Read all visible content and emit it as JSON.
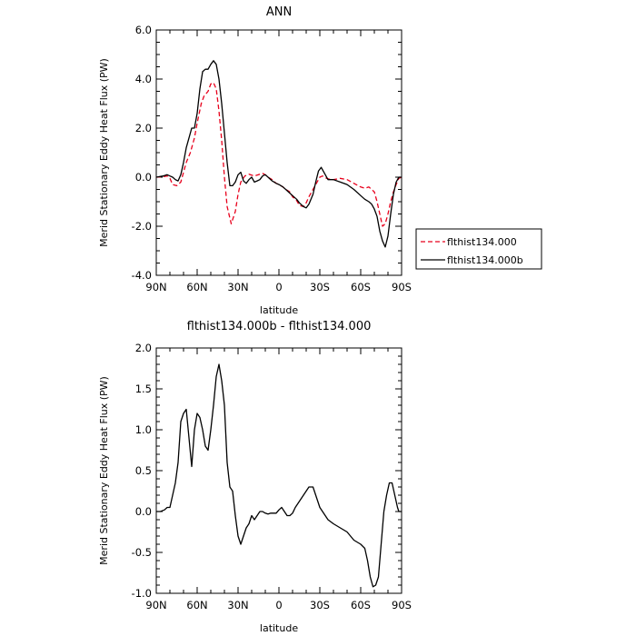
{
  "chart_data": [
    {
      "type": "line",
      "title": "ANN",
      "xlabel": "latitude",
      "ylabel": "Merid Stationary Eddy Heat Flux (PW)",
      "xlim": [
        90,
        -90
      ],
      "ylim": [
        -4,
        6
      ],
      "x_ticks": [
        90,
        60,
        30,
        0,
        -30,
        -60,
        -90
      ],
      "x_tick_labels": [
        "90N",
        "60N",
        "30N",
        "0",
        "30S",
        "60S",
        "90S"
      ],
      "y_ticks": [
        -4,
        -2,
        0,
        2,
        4,
        6
      ],
      "y_tick_labels": [
        "-4.0",
        "-2.0",
        "0.0",
        "2.0",
        "4.0",
        "6.0"
      ],
      "grid": false,
      "legend_position": "right",
      "series": [
        {
          "name": "flthist134.000",
          "color": "#e8001c",
          "dash": "dashed",
          "x": [
            90,
            85,
            82,
            80,
            78,
            75,
            72,
            70,
            68,
            65,
            62,
            60,
            57,
            55,
            52,
            50,
            48,
            46,
            44,
            42,
            40,
            38,
            35,
            32,
            30,
            28,
            25,
            22,
            18,
            15,
            12,
            10,
            8,
            5,
            2,
            0,
            -3,
            -5,
            -8,
            -10,
            -13,
            -15,
            -18,
            -20,
            -22,
            -25,
            -28,
            -30,
            -32,
            -35,
            -38,
            -40,
            -45,
            -50,
            -55,
            -60,
            -63,
            -66,
            -70,
            -72,
            -74,
            -76,
            -78,
            -80,
            -82,
            -84,
            -86,
            -88,
            -90
          ],
          "y": [
            0.0,
            0.02,
            0.05,
            -0.05,
            -0.3,
            -0.35,
            -0.2,
            0.2,
            0.6,
            1.0,
            1.6,
            2.2,
            3.0,
            3.3,
            3.5,
            3.8,
            3.85,
            3.6,
            2.7,
            1.5,
            0.0,
            -1.2,
            -1.9,
            -1.4,
            -0.7,
            -0.2,
            0.05,
            0.12,
            0.05,
            0.1,
            0.15,
            0.1,
            0.0,
            -0.1,
            -0.25,
            -0.3,
            -0.4,
            -0.5,
            -0.6,
            -0.8,
            -0.95,
            -1.15,
            -1.2,
            -1.05,
            -0.8,
            -0.5,
            -0.2,
            0.0,
            0.05,
            -0.05,
            -0.1,
            -0.1,
            -0.05,
            -0.1,
            -0.25,
            -0.4,
            -0.45,
            -0.4,
            -0.6,
            -1.0,
            -1.5,
            -2.0,
            -1.9,
            -1.5,
            -1.0,
            -0.6,
            -0.3,
            -0.05,
            0.0
          ]
        },
        {
          "name": "flthist134.000b",
          "color": "#000000",
          "dash": "solid",
          "x": [
            90,
            85,
            82,
            80,
            78,
            76,
            74,
            72,
            70,
            68,
            66,
            64,
            62,
            60,
            58,
            56,
            54,
            52,
            50,
            48,
            46,
            44,
            42,
            40,
            38,
            36,
            34,
            32,
            30,
            28,
            26,
            24,
            22,
            20,
            18,
            16,
            14,
            12,
            10,
            8,
            5,
            2,
            0,
            -3,
            -5,
            -8,
            -10,
            -13,
            -15,
            -18,
            -20,
            -22,
            -25,
            -27,
            -29,
            -31,
            -33,
            -36,
            -40,
            -45,
            -50,
            -55,
            -60,
            -63,
            -66,
            -68,
            -70,
            -72,
            -74,
            -76,
            -78,
            -80,
            -82,
            -84,
            -86,
            -88,
            -90
          ],
          "y": [
            0.0,
            0.05,
            0.1,
            0.05,
            0.0,
            -0.1,
            -0.15,
            0.1,
            0.6,
            1.2,
            1.6,
            2.0,
            2.0,
            2.6,
            3.6,
            4.3,
            4.4,
            4.4,
            4.6,
            4.75,
            4.6,
            4.0,
            3.0,
            1.8,
            0.6,
            -0.35,
            -0.35,
            -0.2,
            0.1,
            0.2,
            -0.15,
            -0.25,
            -0.1,
            0.0,
            -0.2,
            -0.15,
            -0.1,
            0.05,
            0.1,
            0.0,
            -0.15,
            -0.25,
            -0.3,
            -0.4,
            -0.5,
            -0.65,
            -0.75,
            -0.9,
            -1.05,
            -1.2,
            -1.25,
            -1.1,
            -0.7,
            -0.2,
            0.25,
            0.4,
            0.2,
            -0.1,
            -0.1,
            -0.2,
            -0.3,
            -0.5,
            -0.75,
            -0.9,
            -1.0,
            -1.1,
            -1.3,
            -1.6,
            -2.2,
            -2.6,
            -2.85,
            -2.4,
            -1.5,
            -0.7,
            -0.2,
            0.0,
            0.0
          ]
        }
      ]
    },
    {
      "type": "line",
      "title": "flthist134.000b - flthist134.000",
      "xlabel": "latitude",
      "ylabel": "Merid Stationary Eddy Heat Flux (PW)",
      "xlim": [
        90,
        -90
      ],
      "ylim": [
        -1.0,
        2.0
      ],
      "x_ticks": [
        90,
        60,
        30,
        0,
        -30,
        -60,
        -90
      ],
      "x_tick_labels": [
        "90N",
        "60N",
        "30N",
        "0",
        "30S",
        "60S",
        "90S"
      ],
      "y_ticks": [
        -1.0,
        -0.5,
        0.0,
        0.5,
        1.0,
        1.5,
        2.0
      ],
      "y_tick_labels": [
        "-1.0",
        "-0.5",
        "0.0",
        "0.5",
        "1.0",
        "1.5",
        "2.0"
      ],
      "grid": false,
      "series": [
        {
          "color": "#000000",
          "dash": "solid",
          "x": [
            90,
            87,
            84,
            82,
            80,
            78,
            76,
            74,
            72,
            70,
            68,
            66,
            64,
            62,
            60,
            58,
            56,
            54,
            52,
            50,
            48,
            46,
            44,
            42,
            40,
            38,
            36,
            34,
            32,
            30,
            28,
            26,
            24,
            22,
            20,
            18,
            16,
            14,
            12,
            10,
            8,
            6,
            4,
            2,
            0,
            -2,
            -4,
            -6,
            -8,
            -10,
            -12,
            -14,
            -16,
            -18,
            -20,
            -22,
            -25,
            -28,
            -30,
            -32,
            -34,
            -36,
            -40,
            -45,
            -50,
            -55,
            -60,
            -63,
            -65,
            -67,
            -69,
            -71,
            -73,
            -75,
            -77,
            -79,
            -81,
            -83,
            -85,
            -87,
            -88,
            -90
          ],
          "y": [
            0.0,
            0.0,
            0.02,
            0.05,
            0.05,
            0.2,
            0.35,
            0.6,
            1.1,
            1.2,
            1.25,
            0.9,
            0.55,
            1.0,
            1.2,
            1.15,
            1.0,
            0.8,
            0.75,
            1.0,
            1.3,
            1.65,
            1.8,
            1.6,
            1.3,
            0.6,
            0.3,
            0.25,
            -0.05,
            -0.3,
            -0.4,
            -0.3,
            -0.2,
            -0.15,
            -0.05,
            -0.1,
            -0.05,
            0.0,
            0.0,
            -0.02,
            -0.03,
            -0.02,
            -0.02,
            -0.02,
            0.02,
            0.05,
            0.0,
            -0.05,
            -0.05,
            -0.02,
            0.05,
            0.1,
            0.15,
            0.2,
            0.25,
            0.3,
            0.3,
            0.15,
            0.05,
            0.0,
            -0.05,
            -0.1,
            -0.15,
            -0.2,
            -0.25,
            -0.35,
            -0.4,
            -0.45,
            -0.6,
            -0.8,
            -0.92,
            -0.9,
            -0.8,
            -0.4,
            0.0,
            0.2,
            0.35,
            0.35,
            0.2,
            0.05,
            0.0,
            0.0
          ]
        }
      ]
    }
  ]
}
